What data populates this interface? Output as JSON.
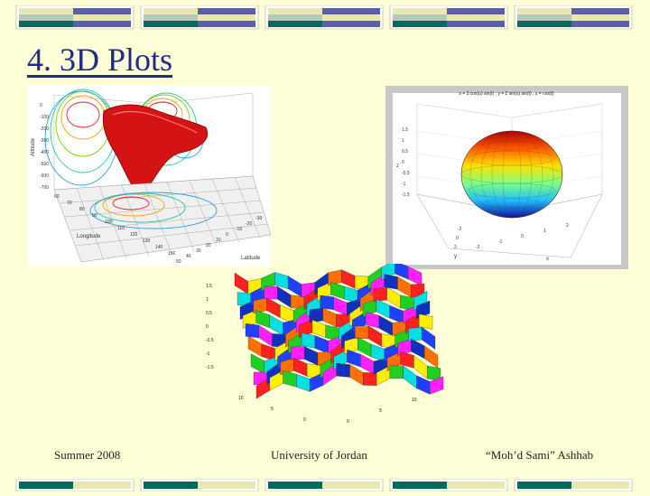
{
  "slide": {
    "title": "4. 3D Plots",
    "footer_left": "Summer 2008",
    "footer_center": "University of Jordan",
    "footer_right": "“Moh’d Sami” Ashhab"
  },
  "figures": {
    "terrain": {
      "ylabel": "Altitude",
      "xlabel": "Longitude",
      "zlabel": "Latitude",
      "alt_ticks": [
        "0",
        "-100",
        "-200",
        "-300",
        "-400",
        "-500",
        "-600",
        "-700"
      ],
      "lon_ticks": [
        "60",
        "70",
        "80",
        "90",
        "100",
        "110",
        "120",
        "130",
        "140",
        "150"
      ],
      "lat_ticks": [
        "50",
        "40",
        "30",
        "20",
        "10",
        "0",
        "-10",
        "-20",
        "-30"
      ]
    },
    "ellipsoid": {
      "caption": "x = 3 cos(u) sin(t) , y = 2 sin(u) sin(t) , z = cos(t)",
      "z_ticks": [
        "1.5",
        "1",
        "0.5",
        "0",
        "-0.5",
        "-1",
        "-1.5"
      ],
      "x_ticks": [
        "-2",
        "-1",
        "0",
        "1",
        "2"
      ],
      "y_ticks": [
        "-2",
        "0",
        "2"
      ],
      "z_label": "z",
      "x_label": "x",
      "y_label": "y"
    },
    "surface": {
      "z_ticks": [
        "1.5",
        "1",
        "0.5",
        "0",
        "-0.5",
        "-1",
        "-1.5"
      ],
      "x_ticks": [
        "10",
        "5",
        "0"
      ],
      "y_ticks": [
        "0",
        "5",
        "10"
      ]
    }
  },
  "theme": {
    "background": "#fdfdd6",
    "title_color": "#1f2a8a",
    "bar_colors": [
      "#006b5b",
      "#e9e6b0",
      "#5b5ea8",
      "#b8c8b8"
    ]
  }
}
